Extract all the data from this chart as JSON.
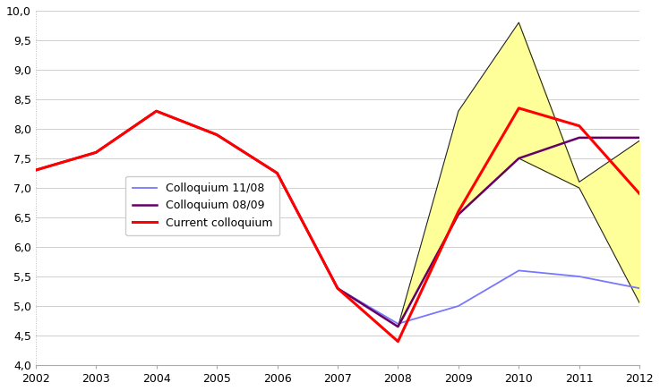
{
  "years": [
    2002,
    2003,
    2004,
    2005,
    2006,
    2007,
    2008,
    2009,
    2010,
    2011,
    2012
  ],
  "colloquium_1108": [
    7.3,
    7.6,
    8.3,
    7.9,
    7.25,
    5.3,
    4.7,
    5.0,
    5.6,
    5.5,
    5.3
  ],
  "colloquium_0809": [
    7.3,
    7.6,
    8.3,
    7.9,
    7.25,
    5.3,
    4.65,
    6.55,
    7.5,
    7.85,
    7.85
  ],
  "current_colloquium": [
    7.3,
    7.6,
    8.3,
    7.9,
    7.25,
    5.3,
    4.4,
    6.6,
    8.35,
    8.05,
    6.9
  ],
  "band_years": [
    2008,
    2009,
    2010,
    2011,
    2012
  ],
  "band_upper": [
    4.65,
    8.3,
    9.8,
    7.1,
    7.8
  ],
  "band_lower": [
    4.65,
    6.55,
    7.5,
    7.0,
    5.05
  ],
  "color_1108": "#7777ff",
  "color_0809": "#660066",
  "color_current": "#ff0000",
  "color_band_fill": "#ffff99",
  "color_band_edge": "#222222",
  "ylim": [
    4.0,
    10.0
  ],
  "xlim": [
    2002,
    2012
  ],
  "yticks": [
    4.0,
    4.5,
    5.0,
    5.5,
    6.0,
    6.5,
    7.0,
    7.5,
    8.0,
    8.5,
    9.0,
    9.5,
    10.0
  ],
  "ytick_labels": [
    "4,0",
    "4,5",
    "5,0",
    "5,5",
    "6,0",
    "6,5",
    "7,0",
    "7,5",
    "8,0",
    "8,5",
    "9,0",
    "9,5",
    "10,0"
  ],
  "legend_labels": [
    "Colloquium 11/08",
    "Colloquium 08/09",
    "Current colloquium"
  ],
  "background_color": "#ffffff"
}
